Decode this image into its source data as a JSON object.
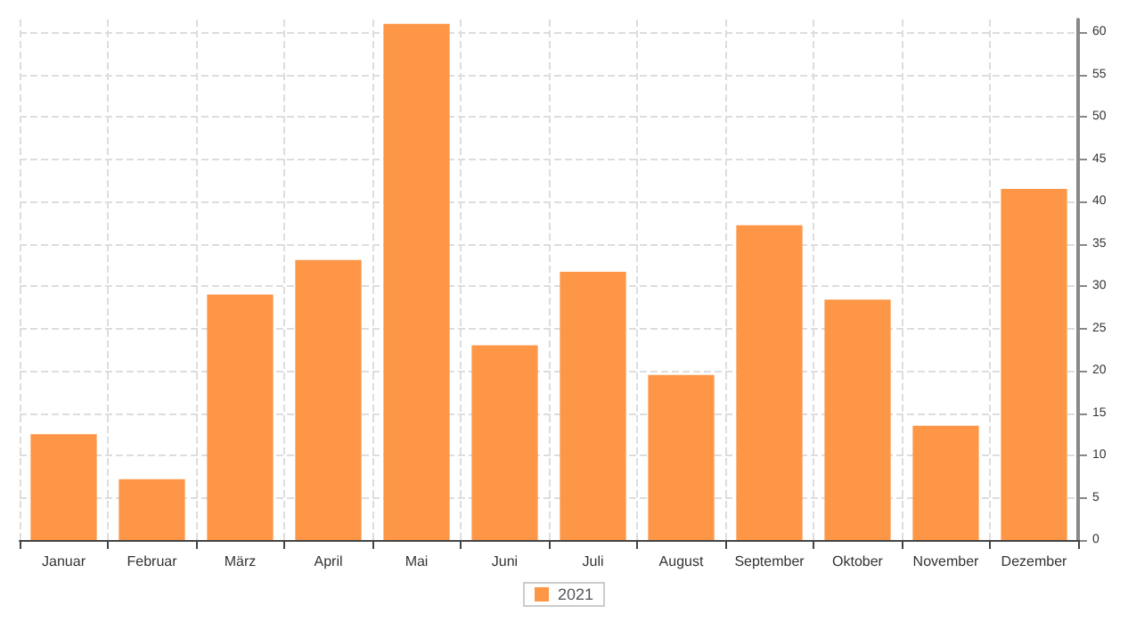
{
  "chart_data": {
    "type": "bar",
    "categories": [
      "Januar",
      "Februar",
      "März",
      "April",
      "Mai",
      "Juni",
      "Juli",
      "August",
      "September",
      "Oktober",
      "November",
      "Dezember"
    ],
    "series": [
      {
        "name": "2021",
        "color": "#fd9646",
        "values": [
          12.5,
          7.2,
          29.0,
          33.1,
          61.0,
          23.0,
          31.7,
          19.5,
          37.2,
          28.4,
          13.5,
          41.5
        ]
      }
    ],
    "ylim": [
      0,
      61.5
    ],
    "yticks": [
      0,
      5,
      10,
      15,
      20,
      25,
      30,
      35,
      40,
      45,
      50,
      55,
      60
    ],
    "grid": true,
    "legend": "bottom"
  }
}
